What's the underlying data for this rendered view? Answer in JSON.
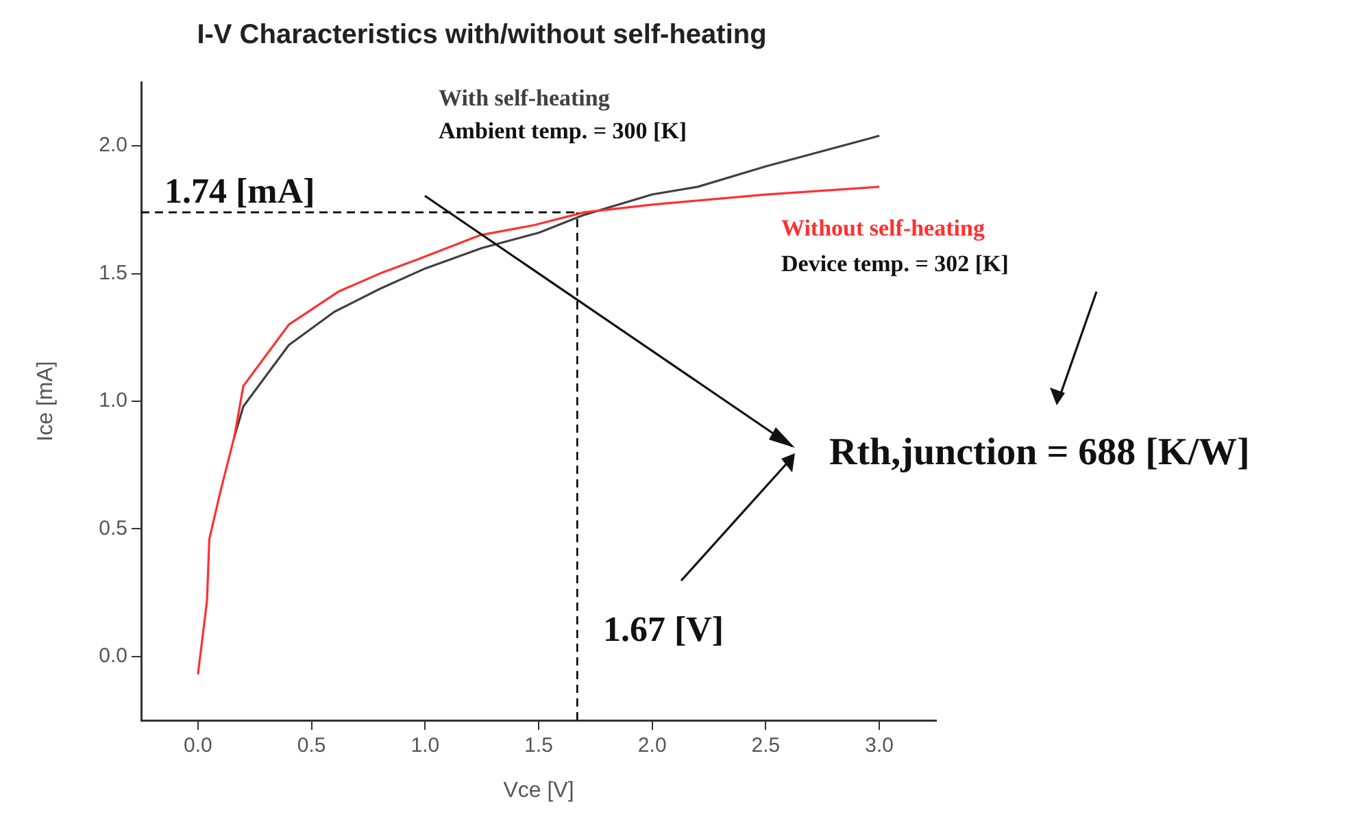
{
  "chart_data": {
    "type": "line",
    "title": "I-V Characteristics with/without self-heating",
    "xlabel": "Vce [V]",
    "ylabel": "Ice [mA]",
    "xlim": [
      -0.25,
      3.25
    ],
    "ylim": [
      -0.25,
      2.25
    ],
    "xticks": [
      {
        "value": 0,
        "label": "0.0"
      },
      {
        "value": 0.5,
        "label": "0.5"
      },
      {
        "value": 1,
        "label": "1.0"
      },
      {
        "value": 1.5,
        "label": "1.5"
      },
      {
        "value": 2,
        "label": "2.0"
      },
      {
        "value": 2.5,
        "label": "2.5"
      },
      {
        "value": 3,
        "label": "3.0"
      }
    ],
    "yticks": [
      {
        "value": 0,
        "label": "0.0"
      },
      {
        "value": 0.5,
        "label": "0.5"
      },
      {
        "value": 1,
        "label": "1.0"
      },
      {
        "value": 1.5,
        "label": "1.5"
      },
      {
        "value": 2,
        "label": "2.0"
      }
    ],
    "grid": false,
    "legend": false,
    "marker": "none",
    "line_style": "solid",
    "series": [
      {
        "name": "With self-heating",
        "color": "#404040",
        "x": [
          0.16,
          0.2,
          0.4,
          0.6,
          0.8,
          1.0,
          1.25,
          1.5,
          1.7,
          2.0,
          2.2,
          2.5,
          3.0
        ],
        "values": [
          0.86,
          0.98,
          1.22,
          1.35,
          1.44,
          1.52,
          1.6,
          1.66,
          1.73,
          1.81,
          1.84,
          1.92,
          2.04
        ]
      },
      {
        "name": "Without self-heating",
        "color": "#ff3030",
        "x": [
          0,
          0.04,
          0.05,
          0.1,
          0.16,
          0.2,
          0.4,
          0.62,
          0.8,
          0.98,
          1.24,
          1.48,
          1.7,
          2.0,
          2.5,
          3.0
        ],
        "values": [
          -0.07,
          0.22,
          0.46,
          0.65,
          0.86,
          1.06,
          1.3,
          1.43,
          1.5,
          1.56,
          1.65,
          1.69,
          1.74,
          1.77,
          1.81,
          1.84
        ]
      }
    ],
    "ref_lines": [
      {
        "axis": "y",
        "value": 1.74,
        "label": "1.74 [mA]",
        "line_style": "dashed",
        "color": "#000000"
      },
      {
        "axis": "x",
        "value": 1.67,
        "label": "1.67 [V]",
        "line_style": "dashed",
        "color": "#000000"
      }
    ],
    "annotations": [
      "Ambient temp. = 300 [K]",
      "Device temp. = 302 [K]",
      "Rth,junction = 688 [K/W]"
    ]
  }
}
